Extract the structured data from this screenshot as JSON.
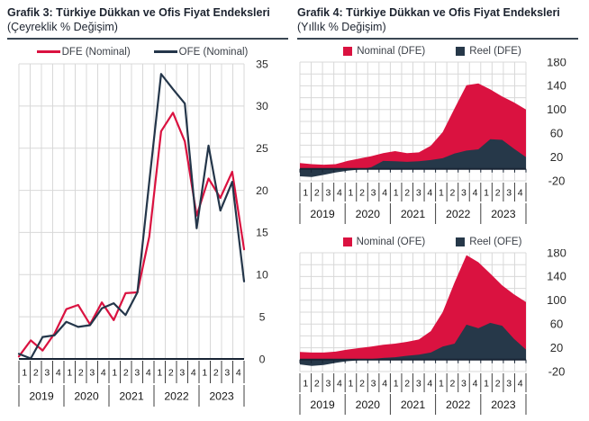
{
  "page": {
    "background": "#ffffff"
  },
  "colors": {
    "nominal_red": "#da1240",
    "reel_navy": "#263849",
    "axis_dark": "#182434",
    "gridline": "#d8d8d8",
    "divider": "#3a4653"
  },
  "chart_data": [
    {
      "id": "grafik3",
      "type": "line",
      "title": "Grafik 3: Türkiye Dükkan ve Ofis Fiyat Endeksleri",
      "subtitle": "(Çeyreklik % Değişim)",
      "legend_position": "top",
      "grid": true,
      "ylim": [
        0,
        35
      ],
      "yticks": [
        0,
        5,
        10,
        15,
        20,
        25,
        30,
        35
      ],
      "ygrid": [
        0,
        5,
        10,
        15,
        20,
        25,
        30,
        35
      ],
      "years": [
        "2019",
        "2020",
        "2021",
        "2022",
        "2023"
      ],
      "quarters": [
        "1",
        "2",
        "3",
        "4"
      ],
      "series": [
        {
          "name": "DFE (Nominal)",
          "color": "#da1240",
          "values": [
            0.3,
            2.2,
            1.0,
            3.0,
            5.9,
            6.4,
            4.1,
            6.7,
            4.6,
            7.8,
            7.9,
            14.5,
            27.0,
            29.2,
            25.8,
            17.0,
            21.4,
            19.1,
            22.2,
            13.0
          ]
        },
        {
          "name": "OFE (Nominal)",
          "color": "#24364a",
          "values": [
            0.6,
            0.05,
            2.6,
            2.8,
            4.4,
            3.8,
            4.0,
            6.0,
            6.6,
            5.2,
            7.9,
            21.0,
            33.8,
            32.0,
            30.3,
            15.5,
            25.3,
            17.6,
            21.0,
            9.2
          ]
        }
      ]
    },
    {
      "id": "grafik4-dfe",
      "type": "area",
      "title": "Grafik 4: Türkiye Dükkan ve Ofis Fiyat Endeksleri",
      "subtitle": "(Yıllık % Değişim)",
      "legend_position": "top",
      "grid": true,
      "ylim": [
        -20,
        180
      ],
      "yticks": [
        -20,
        20,
        60,
        100,
        140,
        180
      ],
      "ygrid": [
        -20,
        0,
        20,
        40,
        60,
        80,
        100,
        120,
        140,
        160,
        180
      ],
      "years": [
        "2019",
        "2020",
        "2021",
        "2022",
        "2023"
      ],
      "quarters": [
        "1",
        "2",
        "3",
        "4"
      ],
      "series": [
        {
          "name": "Nominal (DFE)",
          "color": "#da1240",
          "values": [
            10,
            8,
            7,
            8,
            13.5,
            17.5,
            21.5,
            26.5,
            30,
            26.5,
            28,
            39,
            62,
            102,
            141,
            144,
            134,
            122,
            112,
            100
          ]
        },
        {
          "name": "Reel (DFE)",
          "color": "#263849",
          "values": [
            -12.5,
            -13.5,
            -10,
            -6,
            -3,
            -1,
            3,
            13.5,
            13,
            12,
            13,
            15,
            18,
            26,
            31,
            33,
            50,
            49,
            34,
            20
          ]
        }
      ]
    },
    {
      "id": "grafik4-ofe",
      "type": "area",
      "legend_position": "top",
      "grid": true,
      "ylim": [
        -20,
        180
      ],
      "yticks": [
        -20,
        20,
        60,
        100,
        140,
        180
      ],
      "ygrid": [
        -20,
        0,
        20,
        40,
        60,
        80,
        100,
        120,
        140,
        160,
        180
      ],
      "years": [
        "2019",
        "2020",
        "2021",
        "2022",
        "2023"
      ],
      "quarters": [
        "1",
        "2",
        "3",
        "4"
      ],
      "series": [
        {
          "name": "Nominal (OFE)",
          "color": "#da1240",
          "values": [
            13,
            12,
            12,
            13.5,
            17,
            19.5,
            22,
            25,
            27,
            30,
            34,
            48,
            80,
            130,
            176,
            164,
            145,
            125,
            110,
            97
          ]
        },
        {
          "name": "Reel (OFE)",
          "color": "#263849",
          "values": [
            -8,
            -10.5,
            -9,
            -5.5,
            -2.5,
            -1,
            1,
            3,
            4,
            6.5,
            8.5,
            12,
            22,
            27,
            59,
            53,
            62,
            57,
            35,
            17
          ]
        }
      ]
    }
  ]
}
